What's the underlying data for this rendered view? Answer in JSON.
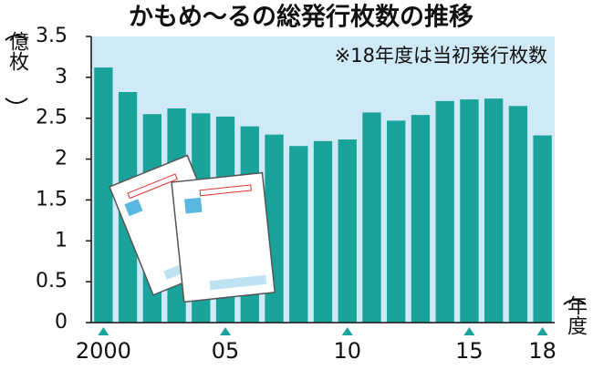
{
  "chart_data": {
    "type": "bar",
    "title": "かもめ～るの総発行枚数の推移",
    "note": "※18年度は当初発行枚数",
    "y_label": "億枚",
    "x_label": "年度",
    "categories": [
      "2000",
      null,
      null,
      null,
      null,
      "05",
      null,
      null,
      null,
      null,
      "10",
      null,
      null,
      null,
      null,
      "15",
      null,
      null,
      "18"
    ],
    "values": [
      3.12,
      2.82,
      2.55,
      2.62,
      2.56,
      2.52,
      2.4,
      2.3,
      2.16,
      2.22,
      2.24,
      2.57,
      2.47,
      2.54,
      2.71,
      2.73,
      2.74,
      2.65,
      2.29
    ],
    "color": "#19a39a",
    "background": "#cfeaf6",
    "ylim": [
      0,
      3.5
    ],
    "yticks": [
      0,
      0.5,
      1,
      1.5,
      2,
      2.5,
      3,
      3.5
    ]
  }
}
